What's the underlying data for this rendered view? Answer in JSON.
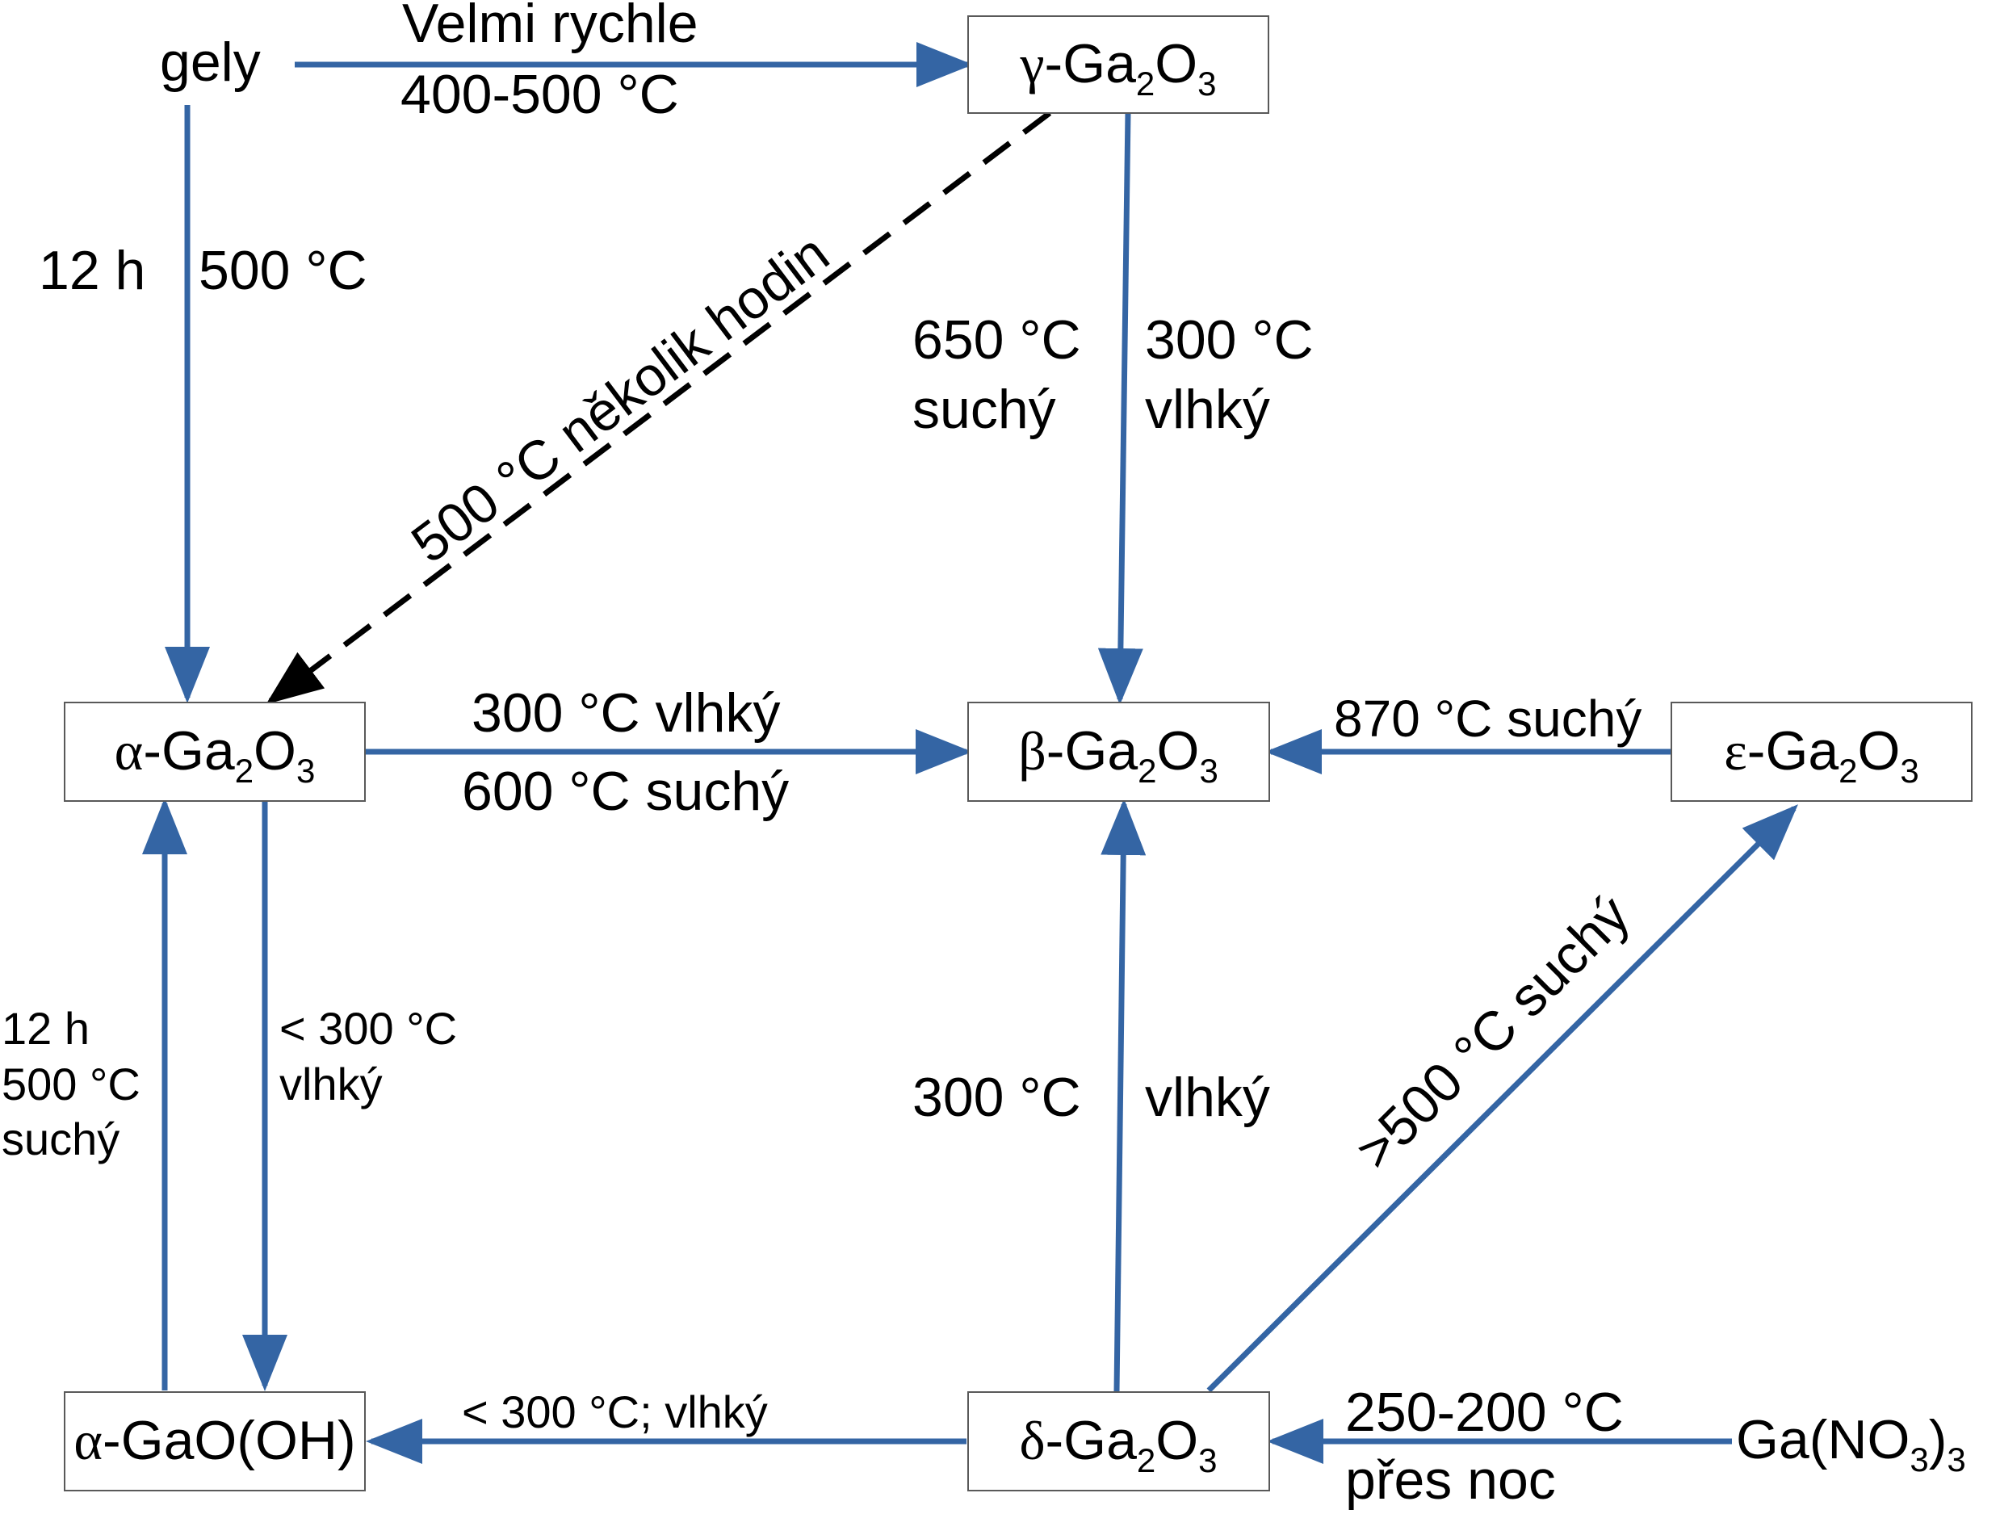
{
  "nodes": {
    "gamma": {
      "greek": "γ",
      "sep": "-",
      "base": "Ga",
      "sub1": "2",
      "mid": "O",
      "sub2": "3"
    },
    "alpha": {
      "greek": "α",
      "sep": "-",
      "base": "Ga",
      "sub1": "2",
      "mid": "O",
      "sub2": "3"
    },
    "beta": {
      "greek": "β",
      "sep": "-",
      "base": "Ga",
      "sub1": "2",
      "mid": "O",
      "sub2": "3"
    },
    "epsilon": {
      "greek": "ε",
      "sep": "-",
      "base": "Ga",
      "sub1": "2",
      "mid": "O",
      "sub2": "3"
    },
    "delta": {
      "greek": "δ",
      "sep": "-",
      "base": "Ga",
      "sub1": "2",
      "mid": "O",
      "sub2": "3"
    },
    "gaooh": {
      "greek": "α",
      "rest": "-GaO(OH)"
    },
    "gels": {
      "label": "gely"
    },
    "nitrate": {
      "base": "Ga(NO",
      "sub1": "3",
      "close": ")",
      "sub2": "3"
    }
  },
  "edges": {
    "gels_gamma": {
      "line1": "Velmi rychle",
      "line2": "400-500 °C"
    },
    "gels_alpha": {
      "left": "12 h",
      "right": "500 °C"
    },
    "gamma_alpha": {
      "label": "500 °C několik hodin"
    },
    "gamma_beta": {
      "left1": "650 °C",
      "left2": "suchý",
      "right1": "300 °C",
      "right2": "vlhký"
    },
    "alpha_beta": {
      "line1": "300 °C vlhký",
      "line2": "600 °C suchý"
    },
    "epsilon_beta": {
      "label": "870 °C suchý"
    },
    "gaooh_alpha": {
      "line1": "12 h",
      "line2": "500 °C",
      "line3": "suchý"
    },
    "alpha_gaooh": {
      "line1": "< 300 °C",
      "line2": "vlhký"
    },
    "delta_beta": {
      "left": "300 °C",
      "right": "vlhký"
    },
    "delta_epsilon": {
      "label": ">500 °C suchý"
    },
    "delta_gaooh": {
      "label": "< 300 °C; vlhký"
    },
    "nitrate_delta": {
      "line1": "250-200 °C",
      "line2": "přes noc"
    }
  },
  "colors": {
    "arrow": "#3465a4",
    "dashed_arrow": "#000000",
    "box_border": "#595959"
  }
}
